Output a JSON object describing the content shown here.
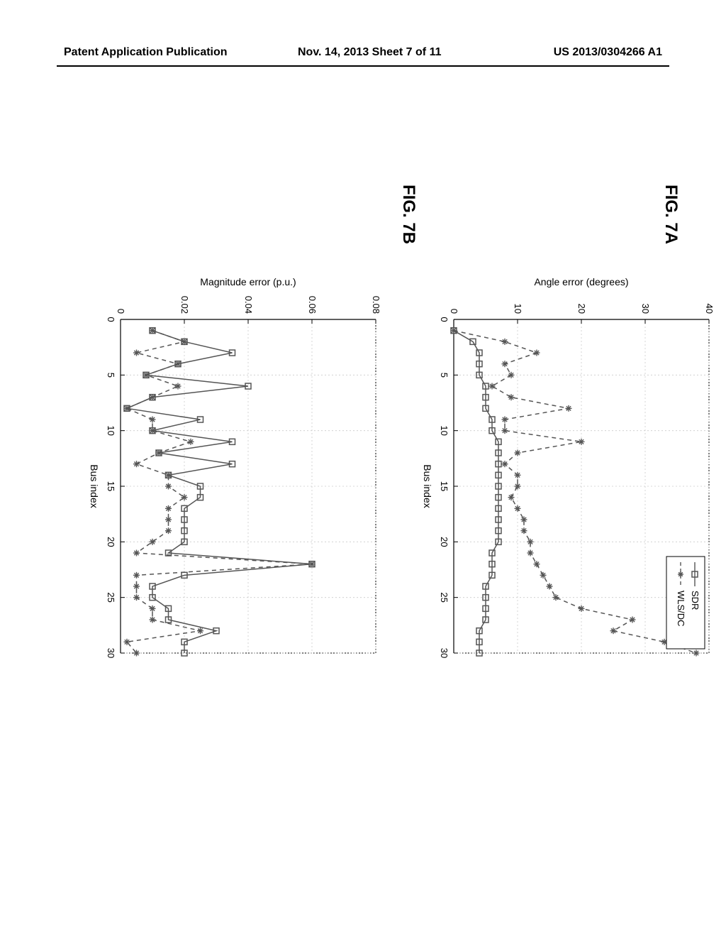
{
  "header": {
    "left": "Patent Application Publication",
    "center": "Nov. 14, 2013  Sheet 7 of 11",
    "right": "US 2013/0304266 A1"
  },
  "figureA": {
    "label": "FIG. 7A",
    "type": "line",
    "xlabel": "Bus index",
    "ylabel": "Angle error (degrees)",
    "xlim": [
      0,
      30
    ],
    "ylim": [
      0,
      40
    ],
    "xtick_step": 5,
    "ytick_step": 10,
    "tick_fontsize": 13,
    "label_fontsize": 14,
    "background_color": "#ffffff",
    "grid_color": "#cccccc",
    "axis_color": "#000000",
    "legend": {
      "items": [
        {
          "label": "SDR",
          "marker": "square",
          "line_style": "solid",
          "color": "#555555"
        },
        {
          "label": "WLS/DC",
          "marker": "asterisk",
          "line_style": "dash",
          "color": "#555555"
        }
      ],
      "position": "upper-right",
      "border_color": "#000000",
      "bg_color": "#ffffff"
    },
    "series": [
      {
        "name": "SDR",
        "marker": "square",
        "line_style": "solid",
        "color": "#555555",
        "marker_size": 8,
        "line_width": 1.5,
        "x": [
          1,
          2,
          3,
          4,
          5,
          6,
          7,
          8,
          9,
          10,
          11,
          12,
          13,
          14,
          15,
          16,
          17,
          18,
          19,
          20,
          21,
          22,
          23,
          24,
          25,
          26,
          27,
          28,
          29,
          30
        ],
        "y": [
          0,
          3,
          4,
          4,
          4,
          5,
          5,
          5,
          6,
          6,
          7,
          7,
          7,
          7,
          7,
          7,
          7,
          7,
          7,
          7,
          6,
          6,
          6,
          5,
          5,
          5,
          5,
          4,
          4,
          4
        ]
      },
      {
        "name": "WLS/DC",
        "marker": "asterisk",
        "line_style": "dash",
        "color": "#555555",
        "marker_size": 9,
        "line_width": 1.5,
        "x": [
          1,
          2,
          3,
          4,
          5,
          6,
          7,
          8,
          9,
          10,
          11,
          12,
          13,
          14,
          15,
          16,
          17,
          18,
          19,
          20,
          21,
          22,
          23,
          24,
          25,
          26,
          27,
          28,
          29,
          30
        ],
        "y": [
          0,
          8,
          13,
          8,
          9,
          6,
          9,
          18,
          8,
          8,
          20,
          10,
          8,
          10,
          10,
          9,
          10,
          11,
          11,
          12,
          12,
          13,
          14,
          15,
          16,
          20,
          28,
          25,
          33,
          38
        ]
      }
    ]
  },
  "figureB": {
    "label": "FIG. 7B",
    "type": "line",
    "xlabel": "Bus index",
    "ylabel": "Magnitude error (p.u.)",
    "xlim": [
      0,
      30
    ],
    "ylim": [
      0,
      0.08
    ],
    "xtick_step": 5,
    "ytick_step": 0.02,
    "tick_fontsize": 13,
    "label_fontsize": 14,
    "background_color": "#ffffff",
    "grid_color": "#cccccc",
    "axis_color": "#000000",
    "series": [
      {
        "name": "SDR",
        "marker": "square",
        "line_style": "solid",
        "color": "#555555",
        "marker_size": 8,
        "line_width": 1.5,
        "x": [
          1,
          2,
          3,
          4,
          5,
          6,
          7,
          8,
          9,
          10,
          11,
          12,
          13,
          14,
          15,
          16,
          17,
          18,
          19,
          20,
          21,
          22,
          23,
          24,
          25,
          26,
          27,
          28,
          29,
          30
        ],
        "y": [
          0.01,
          0.02,
          0.035,
          0.018,
          0.008,
          0.04,
          0.01,
          0.002,
          0.025,
          0.01,
          0.035,
          0.012,
          0.035,
          0.015,
          0.025,
          0.025,
          0.02,
          0.02,
          0.02,
          0.02,
          0.015,
          0.06,
          0.02,
          0.01,
          0.01,
          0.015,
          0.015,
          0.03,
          0.02,
          0.02
        ]
      },
      {
        "name": "WLS/DC",
        "marker": "asterisk",
        "line_style": "dash",
        "color": "#555555",
        "marker_size": 9,
        "line_width": 1.5,
        "x": [
          1,
          2,
          3,
          4,
          5,
          6,
          7,
          8,
          9,
          10,
          11,
          12,
          13,
          14,
          15,
          16,
          17,
          18,
          19,
          20,
          21,
          22,
          23,
          24,
          25,
          26,
          27,
          28,
          29,
          30
        ],
        "y": [
          0.01,
          0.02,
          0.005,
          0.018,
          0.008,
          0.018,
          0.01,
          0.002,
          0.01,
          0.01,
          0.022,
          0.012,
          0.005,
          0.015,
          0.015,
          0.02,
          0.015,
          0.015,
          0.015,
          0.01,
          0.005,
          0.06,
          0.005,
          0.005,
          0.005,
          0.01,
          0.01,
          0.025,
          0.002,
          0.005
        ]
      }
    ]
  }
}
